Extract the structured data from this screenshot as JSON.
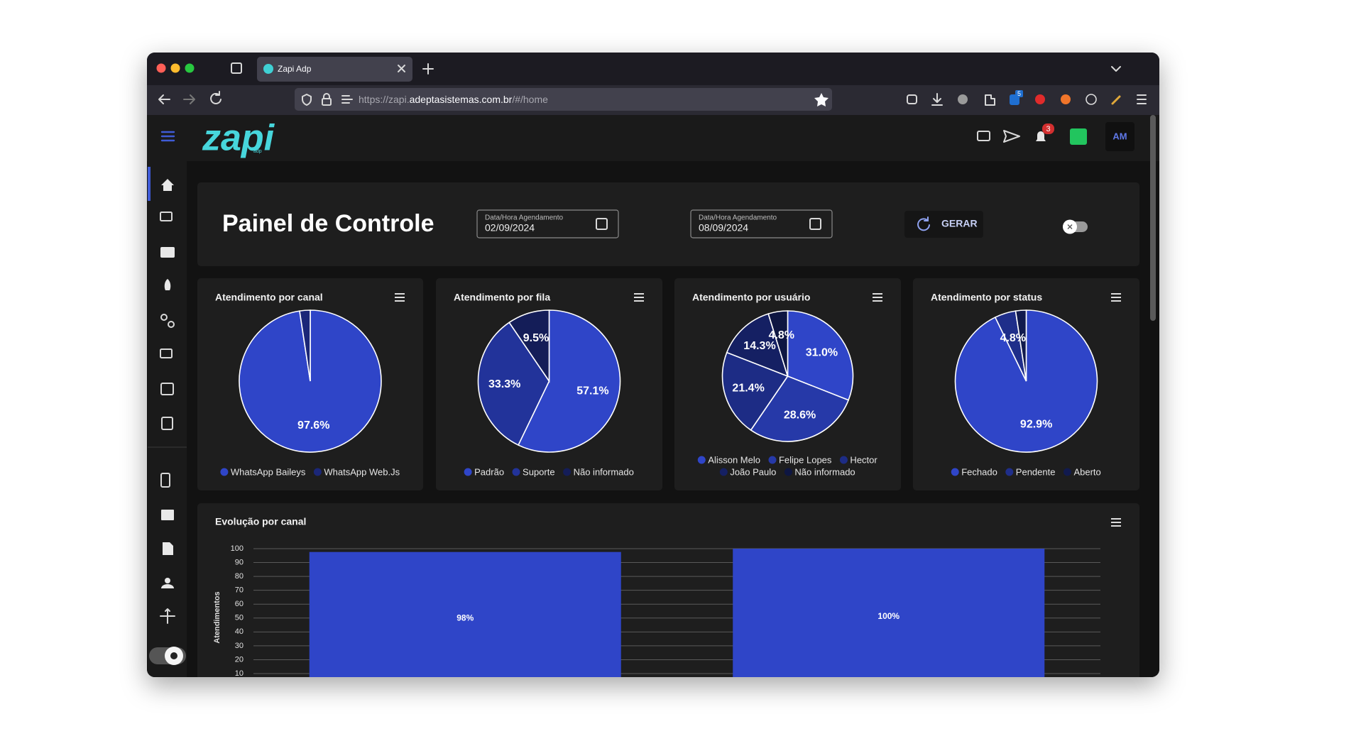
{
  "browser": {
    "tab_title": "Zapi Adp",
    "url_prefix": "https://zapi.",
    "url_domain": "adeptasistemas.com.br",
    "url_path": "/#/home",
    "extension_badge": "5"
  },
  "app": {
    "logo": "zapi",
    "logo_sub": "adp",
    "notification_count": "3",
    "avatar": "AM"
  },
  "panel": {
    "title": "Painel de Controle",
    "date_fields": [
      {
        "label": "Data/Hora Agendamento",
        "value": "02/09/2024"
      },
      {
        "label": "Data/Hora Agendamento",
        "value": "08/09/2024"
      }
    ],
    "button": "GERAR"
  },
  "chart_data": [
    {
      "type": "pie",
      "title": "Atendimento por canal",
      "categories": [
        "WhatsApp Baileys",
        "WhatsApp Web.Js"
      ],
      "values": [
        97.6,
        2.4
      ],
      "value_labels": [
        "97.6%",
        null
      ],
      "colors": [
        "#2f45c8",
        "#1b2778"
      ]
    },
    {
      "type": "pie",
      "title": "Atendimento por fila",
      "categories": [
        "Padrão",
        "Suporte",
        "Não informado"
      ],
      "values": [
        57.1,
        33.3,
        9.5
      ],
      "value_labels": [
        "57.1%",
        "33.3%",
        "9.5%"
      ],
      "colors": [
        "#2f45c8",
        "#22339a",
        "#141d58"
      ]
    },
    {
      "type": "pie",
      "title": "Atendimento por usuário",
      "categories": [
        "Alisson Melo",
        "Felipe Lopes",
        "Hector",
        "João Paulo",
        "Não informado"
      ],
      "values": [
        31.0,
        28.6,
        21.4,
        14.3,
        4.8
      ],
      "value_labels": [
        "31.0%",
        "28.6%",
        "21.4%",
        "14.3%",
        "4.8%"
      ],
      "colors": [
        "#2f45c8",
        "#2639a8",
        "#1d2c85",
        "#152063",
        "#0e1642"
      ]
    },
    {
      "type": "pie",
      "title": "Atendimento por status",
      "categories": [
        "Fechado",
        "Pendente",
        "Aberto"
      ],
      "values": [
        92.9,
        4.8,
        2.4
      ],
      "value_labels": [
        "92.9%",
        "4.8%",
        null
      ],
      "colors": [
        "#2f45c8",
        "#1f2e8a",
        "#111a4e"
      ]
    },
    {
      "type": "bar",
      "title": "Evolução por canal",
      "y_label": "Atendimentos",
      "categories": [
        null,
        null
      ],
      "values": [
        97.6,
        100
      ],
      "value_labels": [
        "98%",
        "100%"
      ],
      "color": "#2f45c8",
      "ylim": [
        0,
        100
      ],
      "yticks": [
        10,
        20,
        30,
        40,
        50,
        60,
        70,
        80,
        90,
        100
      ],
      "grid": true
    }
  ]
}
